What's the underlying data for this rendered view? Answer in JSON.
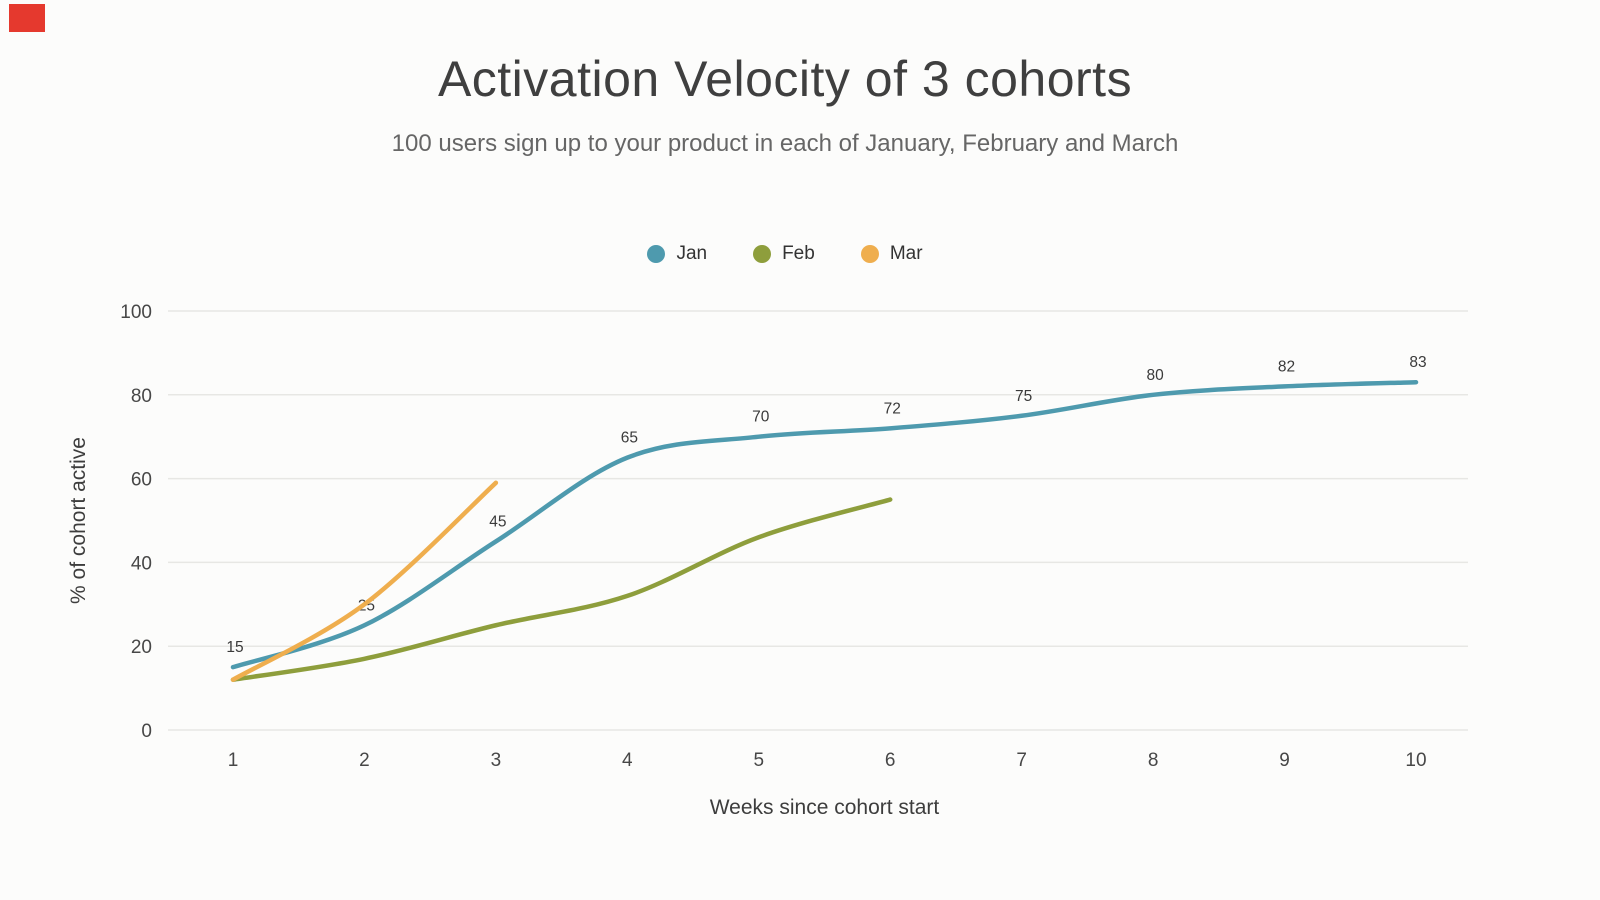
{
  "chart_data": {
    "type": "line",
    "title": "Activation Velocity of 3 cohorts",
    "subtitle": "100 users sign up to your product in each of January, February and March",
    "xlabel": "Weeks since cohort start",
    "ylabel": "% of cohort active",
    "x": [
      1,
      2,
      3,
      4,
      5,
      6,
      7,
      8,
      9,
      10
    ],
    "ylim": [
      0,
      100
    ],
    "yticks": [
      0,
      20,
      40,
      60,
      80,
      100
    ],
    "grid": "horizontal",
    "legend_position": "top",
    "series": [
      {
        "name": "Jan",
        "color": "#4e9aae",
        "values": [
          15,
          25,
          45,
          65,
          70,
          72,
          75,
          80,
          82,
          83
        ],
        "point_labels": [
          "15",
          "25",
          "45",
          "65",
          "70",
          "72",
          "75",
          "80",
          "82",
          "83"
        ]
      },
      {
        "name": "Feb",
        "color": "#8e9e3c",
        "values": [
          12,
          17,
          25,
          32,
          46,
          55
        ],
        "point_labels": []
      },
      {
        "name": "Mar",
        "color": "#efae4e",
        "values": [
          12,
          30,
          59
        ],
        "point_labels": []
      }
    ]
  },
  "colors": {
    "background": "#fcfcfb",
    "grid": "#e7e7e4",
    "marker_red": "#e5392e"
  }
}
